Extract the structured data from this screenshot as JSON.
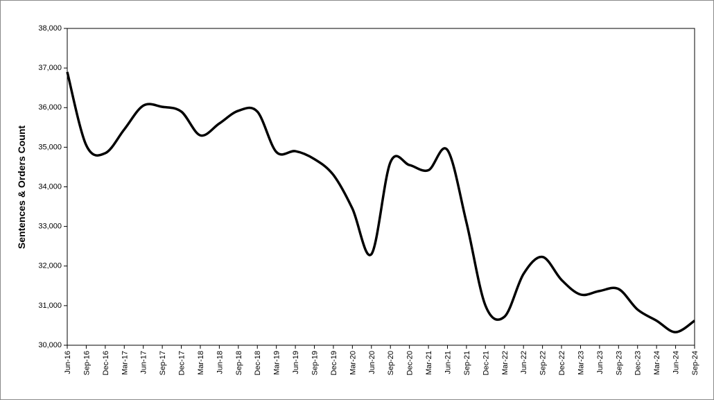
{
  "chart_data": {
    "type": "line",
    "y_label": "Sentences & Orders Count",
    "categories": [
      "Jun-16",
      "Sep-16",
      "Dec-16",
      "Mar-17",
      "Jun-17",
      "Sep-17",
      "Dec-17",
      "Mar-18",
      "Jun-18",
      "Sep-18",
      "Dec-18",
      "Mar-19",
      "Jun-19",
      "Sep-19",
      "Dec-19",
      "Mar-20",
      "Jun-20",
      "Sep-20",
      "Dec-20",
      "Mar-21",
      "Jun-21",
      "Sep-21",
      "Dec-21",
      "Mar-22",
      "Jun-22",
      "Sep-22",
      "Dec-22",
      "Mar-23",
      "Jun-23",
      "Sep-23",
      "Dec-23",
      "Mar-24",
      "Jun-24",
      "Sep-24"
    ],
    "values": [
      36900,
      35050,
      34850,
      35450,
      36050,
      36020,
      35900,
      35300,
      35600,
      35920,
      35900,
      34880,
      34900,
      34700,
      34300,
      33450,
      32300,
      34620,
      34550,
      34420,
      34930,
      33100,
      31000,
      30720,
      31800,
      32230,
      31650,
      31280,
      31370,
      31420,
      30900,
      30620,
      30330,
      30620
    ],
    "color": "#000000",
    "ylim": [
      30000,
      38000
    ],
    "yticks": [
      {
        "value": 30000,
        "label": "30,000"
      },
      {
        "value": 31000,
        "label": "31,000"
      },
      {
        "value": 32000,
        "label": "32,000"
      },
      {
        "value": 33000,
        "label": "33,000"
      },
      {
        "value": 34000,
        "label": "34,000"
      },
      {
        "value": 35000,
        "label": "35,000"
      },
      {
        "value": 36000,
        "label": "36,000"
      },
      {
        "value": 37000,
        "label": "37,000"
      },
      {
        "value": 38000,
        "label": "38,000"
      }
    ],
    "grid": false
  }
}
